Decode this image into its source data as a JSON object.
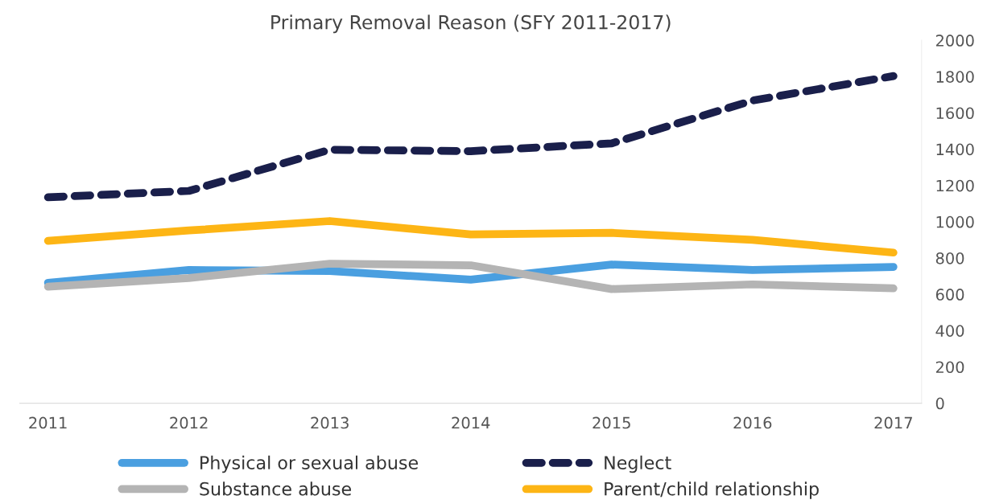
{
  "chart_data": {
    "type": "line",
    "title": "Primary Removal Reason (SFY 2011-2017)",
    "categories": [
      "2011",
      "2012",
      "2013",
      "2014",
      "2015",
      "2016",
      "2017"
    ],
    "series": [
      {
        "name": "Physical or sexual abuse",
        "color": "#4a9fe0",
        "values": [
          664,
          734,
          729,
          681,
          764,
          734,
          751
        ]
      },
      {
        "name": "Substance abuse",
        "color": "#b4b4b4",
        "values": [
          642,
          690,
          769,
          760,
          629,
          655,
          633
        ]
      },
      {
        "name": "Neglect",
        "color": "#1a1f4b",
        "line_style": "dashed",
        "values": [
          1135,
          1170,
          1397,
          1389,
          1432,
          1668,
          1803
        ]
      },
      {
        "name": "Parent/child relationship",
        "color": "#fdb515",
        "values": [
          895,
          952,
          1004,
          930,
          939,
          900,
          830
        ]
      }
    ],
    "ylim": [
      0,
      2000
    ],
    "yticks": [
      0,
      200,
      400,
      600,
      800,
      1000,
      1200,
      1400,
      1600,
      1800,
      2000
    ],
    "grid": false,
    "legend": "bottom",
    "marker": "none"
  }
}
